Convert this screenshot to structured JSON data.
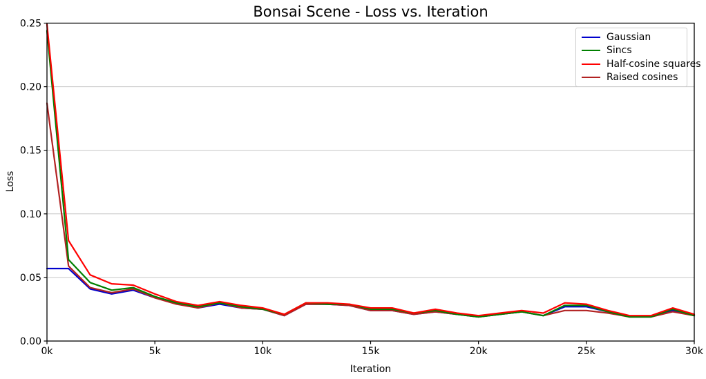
{
  "chart_data": {
    "type": "line",
    "title": "Bonsai Scene - Loss vs. Iteration",
    "xlabel": "Iteration",
    "ylabel": "Loss",
    "xlim_k": [
      0,
      30
    ],
    "ylim": [
      0.0,
      0.25
    ],
    "grid": "horizontal",
    "gridline_values": [
      0.05,
      0.1,
      0.15,
      0.2
    ],
    "legend_position": "upper right",
    "x_tick_values_k": [
      0,
      5,
      10,
      15,
      20,
      25,
      30
    ],
    "x_tick_labels": [
      "0k",
      "5k",
      "10k",
      "15k",
      "20k",
      "25k",
      "30k"
    ],
    "y_tick_values": [
      0.0,
      0.05,
      0.1,
      0.15,
      0.2,
      0.25
    ],
    "y_tick_labels": [
      "0.00",
      "0.05",
      "0.10",
      "0.15",
      "0.20",
      "0.25"
    ],
    "x_k": [
      0,
      1,
      2,
      3,
      4,
      5,
      6,
      7,
      8,
      9,
      10,
      11,
      12,
      13,
      14,
      15,
      16,
      17,
      18,
      19,
      20,
      21,
      22,
      23,
      24,
      25,
      26,
      27,
      28,
      29,
      30
    ],
    "series": [
      {
        "name": "Gaussian",
        "color": "#0000cd",
        "values": [
          0.057,
          0.057,
          0.041,
          0.037,
          0.04,
          0.034,
          0.03,
          0.026,
          0.029,
          0.026,
          0.025,
          0.02,
          0.029,
          0.029,
          0.028,
          0.024,
          0.024,
          0.021,
          0.023,
          0.021,
          0.019,
          0.021,
          0.023,
          0.02,
          0.027,
          0.027,
          0.023,
          0.019,
          0.019,
          0.024,
          0.02
        ]
      },
      {
        "name": "Sincs",
        "color": "#008000",
        "values": [
          0.244,
          0.064,
          0.046,
          0.04,
          0.042,
          0.035,
          0.03,
          0.027,
          0.03,
          0.027,
          0.025,
          0.021,
          0.03,
          0.029,
          0.029,
          0.025,
          0.025,
          0.022,
          0.024,
          0.021,
          0.019,
          0.021,
          0.023,
          0.02,
          0.028,
          0.028,
          0.023,
          0.019,
          0.019,
          0.025,
          0.02
        ]
      },
      {
        "name": "Half-cosine squares",
        "color": "#ff0000",
        "values": [
          0.249,
          0.079,
          0.052,
          0.045,
          0.044,
          0.037,
          0.031,
          0.028,
          0.031,
          0.028,
          0.026,
          0.021,
          0.03,
          0.03,
          0.029,
          0.026,
          0.026,
          0.022,
          0.025,
          0.022,
          0.02,
          0.022,
          0.024,
          0.022,
          0.03,
          0.029,
          0.024,
          0.02,
          0.02,
          0.026,
          0.021
        ]
      },
      {
        "name": "Raised cosines",
        "color": "#b22222",
        "values": [
          0.187,
          0.059,
          0.042,
          0.038,
          0.041,
          0.034,
          0.029,
          0.026,
          0.03,
          0.026,
          0.025,
          0.02,
          0.029,
          0.029,
          0.028,
          0.024,
          0.024,
          0.021,
          0.023,
          0.021,
          0.019,
          0.021,
          0.023,
          0.02,
          0.024,
          0.024,
          0.022,
          0.019,
          0.019,
          0.023,
          0.02
        ]
      }
    ],
    "z_order": [
      0,
      3,
      1,
      2
    ],
    "colors": {
      "spine": "#000000",
      "gridline": "#c6c6c6",
      "tick_label": "#000000",
      "background": "#ffffff"
    }
  }
}
